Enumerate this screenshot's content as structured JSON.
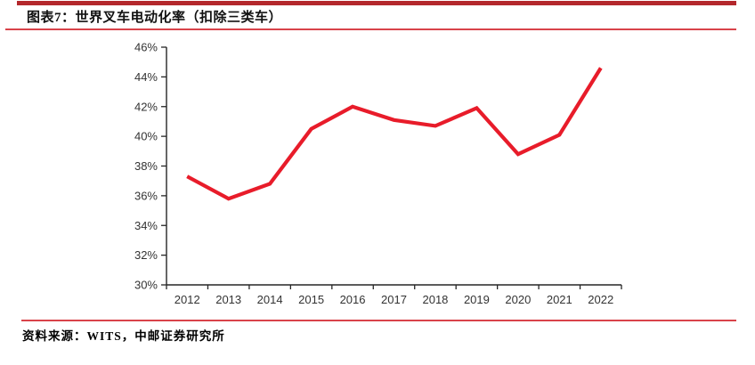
{
  "header": {
    "title": "图表7：世界叉车电动化率（扣除三类车）"
  },
  "footer": {
    "source": "资料来源：WITS，中邮证券研究所"
  },
  "colors": {
    "rule_heavy": "#b4282c",
    "rule_light": "#d9434a",
    "series_line": "#e81c2a",
    "axis_line": "#262626",
    "tick_label": "#333333",
    "title_text": "#111111"
  },
  "chart_data": {
    "type": "line",
    "title": "世界叉车电动化率（扣除三类车）",
    "categories": [
      "2012",
      "2013",
      "2014",
      "2015",
      "2016",
      "2017",
      "2018",
      "2019",
      "2020",
      "2021",
      "2022"
    ],
    "series": [
      {
        "name": "世界叉车电动化率（扣除三类车）",
        "values": [
          37.3,
          35.8,
          36.8,
          40.5,
          42.0,
          41.1,
          40.7,
          41.9,
          38.8,
          40.1,
          44.6
        ],
        "color": "#e81c2a"
      }
    ],
    "xlabel": "",
    "ylabel": "",
    "ylim": [
      30,
      46
    ],
    "ytick_step": 2,
    "ytick_labels": [
      "30%",
      "32%",
      "34%",
      "36%",
      "38%",
      "40%",
      "42%",
      "44%",
      "46%"
    ],
    "grid": false,
    "legend": false
  }
}
